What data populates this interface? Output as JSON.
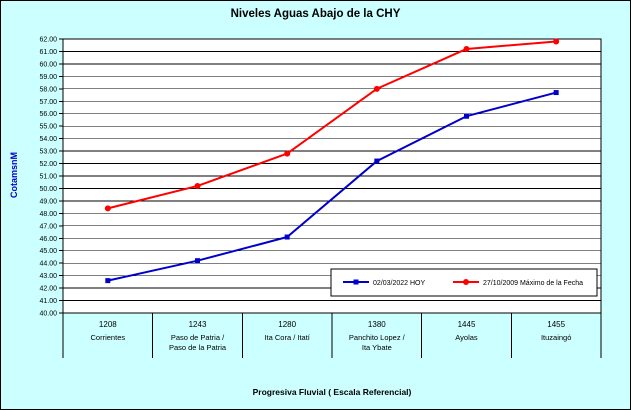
{
  "chart_data": {
    "type": "line",
    "title": "Niveles Aguas Abajo de la CHY",
    "ylabel": "CotamsnM",
    "xlabel": "Progresiva Fluvial ( Escala Referencial)",
    "ylim": [
      40,
      62
    ],
    "ytick_step": 1,
    "grid": true,
    "background_color": "#CCFFFF",
    "plot_background_color": "#FFFFFF",
    "legend_position": "inside-bottom-right",
    "x_categories": [
      {
        "km": "1208",
        "name": [
          "Corrientes"
        ]
      },
      {
        "km": "1243",
        "name": [
          "Paso de Patria /",
          "Paso de la Patria"
        ]
      },
      {
        "km": "1280",
        "name": [
          "Ita Cora / Itatí"
        ]
      },
      {
        "km": "1380",
        "name": [
          "Panchito Lopez /",
          "Ita Ybate"
        ]
      },
      {
        "km": "1445",
        "name": [
          "Ayolas"
        ]
      },
      {
        "km": "1455",
        "name": [
          "Ituzaingó"
        ]
      }
    ],
    "series": [
      {
        "name": "02/03/2022 HOY",
        "color": "#0000CC",
        "marker": "square",
        "values": [
          42.6,
          44.2,
          46.1,
          52.2,
          55.8,
          57.7
        ]
      },
      {
        "name": "27/10/2009 Máximo de la Fecha",
        "color": "#FF0000",
        "marker": "circle",
        "values": [
          48.4,
          50.2,
          52.8,
          58.0,
          61.2,
          61.8
        ]
      }
    ]
  }
}
